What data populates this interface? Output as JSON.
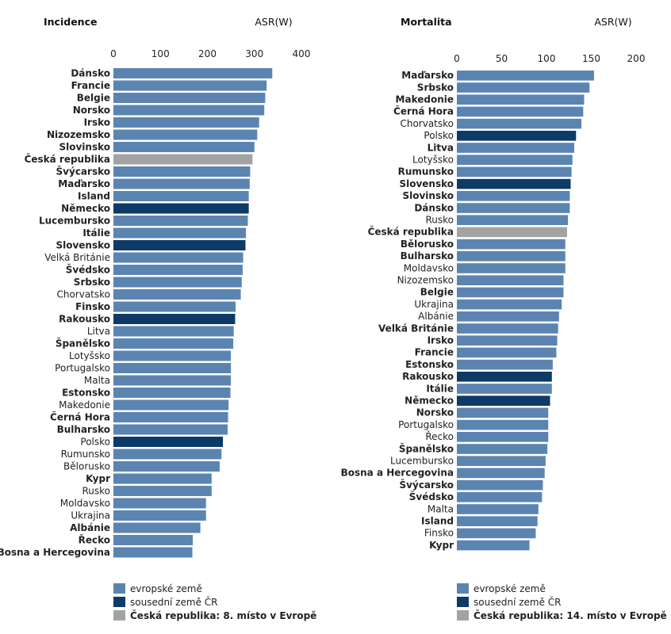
{
  "colors": {
    "european": "#5b84b1",
    "neighbour": "#0d3a66",
    "czech": "#a3a3a3"
  },
  "chart_data": [
    {
      "type": "bar",
      "orientation": "horizontal",
      "title": "Incidence",
      "unit_label": "ASR(W)",
      "xlim": [
        0,
        400
      ],
      "ticks": [
        0,
        100,
        200,
        300,
        400
      ],
      "grid": false,
      "categories": [
        "Dánsko",
        "Francie",
        "Belgie",
        "Norsko",
        "Irsko",
        "Nizozemsko",
        "Slovinsko",
        "Česká republika",
        "Švýcarsko",
        "Maďarsko",
        "Island",
        "Německo",
        "Lucembursko",
        "Itálie",
        "Slovensko",
        "Velká Británie",
        "Švédsko",
        "Srbsko",
        "Chorvatsko",
        "Finsko",
        "Rakousko",
        "Litva",
        "Španělsko",
        "Lotyšsko",
        "Portugalsko",
        "Malta",
        "Estonsko",
        "Makedonie",
        "Černá Hora",
        "Bulharsko",
        "Polsko",
        "Rumunsko",
        "Bělorusko",
        "Kypr",
        "Rusko",
        "Moldavsko",
        "Ukrajina",
        "Albánie",
        "Řecko",
        "Bosna a Hercegovina"
      ],
      "values": [
        338,
        326,
        323,
        321,
        310,
        306,
        300,
        296,
        291,
        290,
        288,
        288,
        286,
        282,
        281,
        276,
        275,
        273,
        271,
        260,
        259,
        256,
        255,
        250,
        250,
        250,
        249,
        245,
        244,
        243,
        233,
        230,
        226,
        209,
        209,
        197,
        197,
        185,
        169,
        168
      ],
      "groups": [
        "E",
        "E",
        "E",
        "E",
        "E",
        "E",
        "E",
        "C",
        "E",
        "E",
        "E",
        "N",
        "E",
        "E",
        "N",
        "E",
        "E",
        "E",
        "E",
        "E",
        "N",
        "E",
        "E",
        "E",
        "E",
        "E",
        "E",
        "E",
        "E",
        "E",
        "N",
        "E",
        "E",
        "E",
        "E",
        "E",
        "E",
        "E",
        "E",
        "E"
      ],
      "bold": [
        true,
        true,
        true,
        true,
        true,
        true,
        true,
        true,
        true,
        true,
        true,
        true,
        true,
        true,
        true,
        false,
        true,
        true,
        false,
        true,
        true,
        false,
        true,
        false,
        false,
        false,
        true,
        false,
        true,
        true,
        false,
        false,
        false,
        true,
        false,
        false,
        false,
        true,
        true,
        true
      ],
      "legend": [
        {
          "group": "E",
          "label": "evropské země"
        },
        {
          "group": "N",
          "label": "sousední země ČR"
        },
        {
          "group": "C",
          "label": "Česká republika: 8. místo v Evropě"
        }
      ]
    },
    {
      "type": "bar",
      "orientation": "horizontal",
      "title": "Mortalita",
      "unit_label": "ASR(W)",
      "xlim": [
        0,
        200
      ],
      "ticks": [
        0,
        50,
        100,
        150,
        200
      ],
      "grid": false,
      "categories": [
        "Maďarsko",
        "Srbsko",
        "Makedonie",
        "Černá Hora",
        "Chorvatsko",
        "Polsko",
        "Litva",
        "Lotyšsko",
        "Rumunsko",
        "Slovensko",
        "Slovinsko",
        "Dánsko",
        "Rusko",
        "Česká republika",
        "Bělorusko",
        "Bulharsko",
        "Moldavsko",
        "Nizozemsko",
        "Belgie",
        "Ukrajina",
        "Albánie",
        "Velká Británie",
        "Irsko",
        "Francie",
        "Estonsko",
        "Rakousko",
        "Itálie",
        "Německo",
        "Norsko",
        "Portugalsko",
        "Řecko",
        "Španělsko",
        "Lucembursko",
        "Bosna a Hercegovina",
        "Švýcarsko",
        "Švédsko",
        "Malta",
        "Island",
        "Finsko",
        "Kypr"
      ],
      "values": [
        153,
        148,
        142,
        141,
        139,
        133,
        131,
        129,
        128,
        127,
        126,
        126,
        124,
        123,
        121,
        121,
        121,
        119,
        119,
        117,
        114,
        113,
        112,
        111,
        107,
        106,
        106,
        104,
        102,
        102,
        102,
        101,
        99,
        98,
        96,
        95,
        91,
        90,
        88,
        81
      ],
      "groups": [
        "E",
        "E",
        "E",
        "E",
        "E",
        "N",
        "E",
        "E",
        "E",
        "N",
        "E",
        "E",
        "E",
        "C",
        "E",
        "E",
        "E",
        "E",
        "E",
        "E",
        "E",
        "E",
        "E",
        "E",
        "E",
        "N",
        "E",
        "N",
        "E",
        "E",
        "E",
        "E",
        "E",
        "E",
        "E",
        "E",
        "E",
        "E",
        "E",
        "E"
      ],
      "bold": [
        true,
        true,
        true,
        true,
        false,
        false,
        true,
        false,
        true,
        true,
        true,
        true,
        false,
        true,
        true,
        true,
        false,
        false,
        true,
        false,
        false,
        true,
        true,
        true,
        true,
        true,
        true,
        true,
        true,
        false,
        false,
        true,
        false,
        true,
        true,
        true,
        false,
        true,
        false,
        true
      ],
      "legend": [
        {
          "group": "E",
          "label": "evropské země"
        },
        {
          "group": "N",
          "label": "sousední země ČR"
        },
        {
          "group": "C",
          "label": "Česká republika: 14. místo v Evropě"
        }
      ]
    }
  ]
}
